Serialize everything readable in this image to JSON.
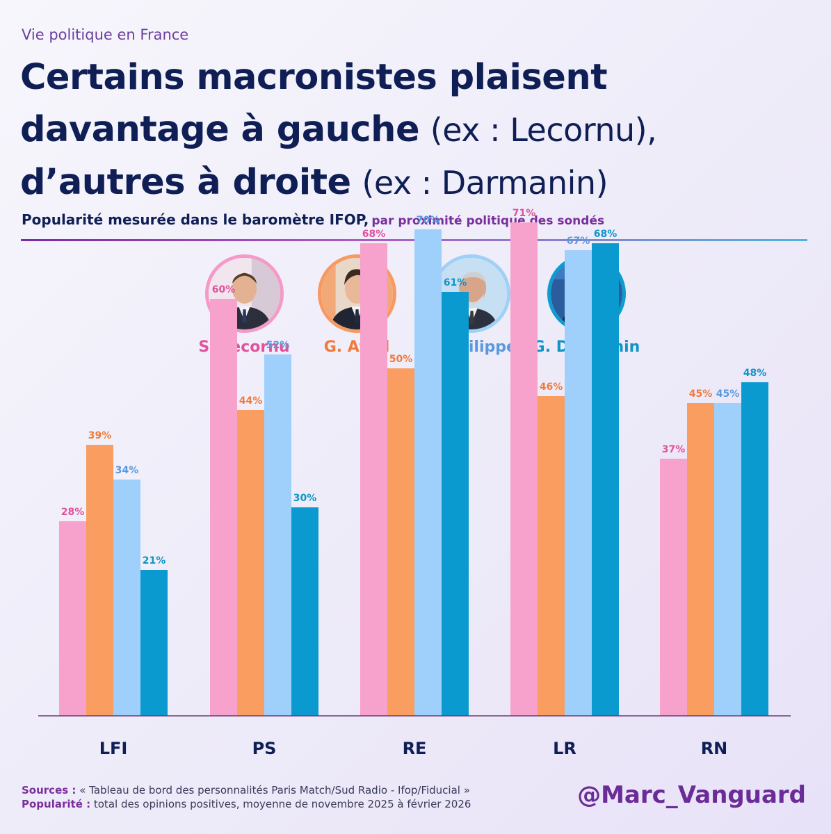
{
  "header": {
    "kicker": "Vie politique en France",
    "title_bold_1": "Certains macronistes plaisent",
    "title_bold_2": "davantage à gauche",
    "title_normal_2": "(ex : Lecornu),",
    "title_bold_3": "d’autres à droite",
    "title_normal_3": "(ex : Darmanin)",
    "subtitle_main": "Popularité mesurée dans le baromètre IFOP,",
    "subtitle_sub": "par proximité politique des sondés"
  },
  "people": [
    {
      "name": "S. Lecornu",
      "color": "#e0529c",
      "ring": "#f39ac9",
      "avatar_icon": "portrait-lecornu-icon"
    },
    {
      "name": "G. Attal",
      "color": "#f07a3a",
      "ring": "#f79a62",
      "avatar_icon": "portrait-attal-icon"
    },
    {
      "name": "E. Philippe",
      "color": "#5a98dd",
      "ring": "#9fd0f6",
      "avatar_icon": "portrait-philippe-icon"
    },
    {
      "name": "G. Darmanin",
      "color": "#0f94c7",
      "ring": "#0d9bd0",
      "avatar_icon": "portrait-darmanin-icon"
    }
  ],
  "chart_data": {
    "type": "bar",
    "categories": [
      "LFI",
      "PS",
      "RE",
      "LR",
      "RN"
    ],
    "ylim": [
      0,
      100
    ],
    "grid": false,
    "series": [
      {
        "name": "S. Lecornu",
        "color": "#f7a1cd",
        "label_color": "#e0529c",
        "values": [
          28,
          60,
          68,
          71,
          37
        ],
        "labels": [
          "28%",
          "60%",
          "68%",
          "71%",
          "37%"
        ]
      },
      {
        "name": "G. Attal",
        "color": "#f99d60",
        "label_color": "#f07a3a",
        "values": [
          39,
          44,
          50,
          46,
          45
        ],
        "labels": [
          "39%",
          "44%",
          "50%",
          "46%",
          "45%"
        ]
      },
      {
        "name": "E. Philippe",
        "color": "#9fd0fb",
        "label_color": "#5a98dd",
        "values": [
          34,
          52,
          70,
          67,
          45
        ],
        "labels": [
          "34%",
          "52%",
          "70%",
          "67%",
          "45%"
        ]
      },
      {
        "name": "G. Darmanin",
        "color": "#0a9ad0",
        "label_color": "#0f94c7",
        "values": [
          21,
          30,
          61,
          68,
          48
        ],
        "labels": [
          "21%",
          "30%",
          "61%",
          "68%",
          "48%"
        ]
      }
    ]
  },
  "footer": {
    "sources_label": "Sources :",
    "sources_text": "« Tableau de bord des personnalités Paris Match/Sud Radio - Ifop/Fiducial »",
    "pop_label": "Popularité :",
    "pop_text": "total des opinions positives, moyenne de novembre 2025 à février 2026",
    "handle": "@Marc_Vanguard"
  }
}
